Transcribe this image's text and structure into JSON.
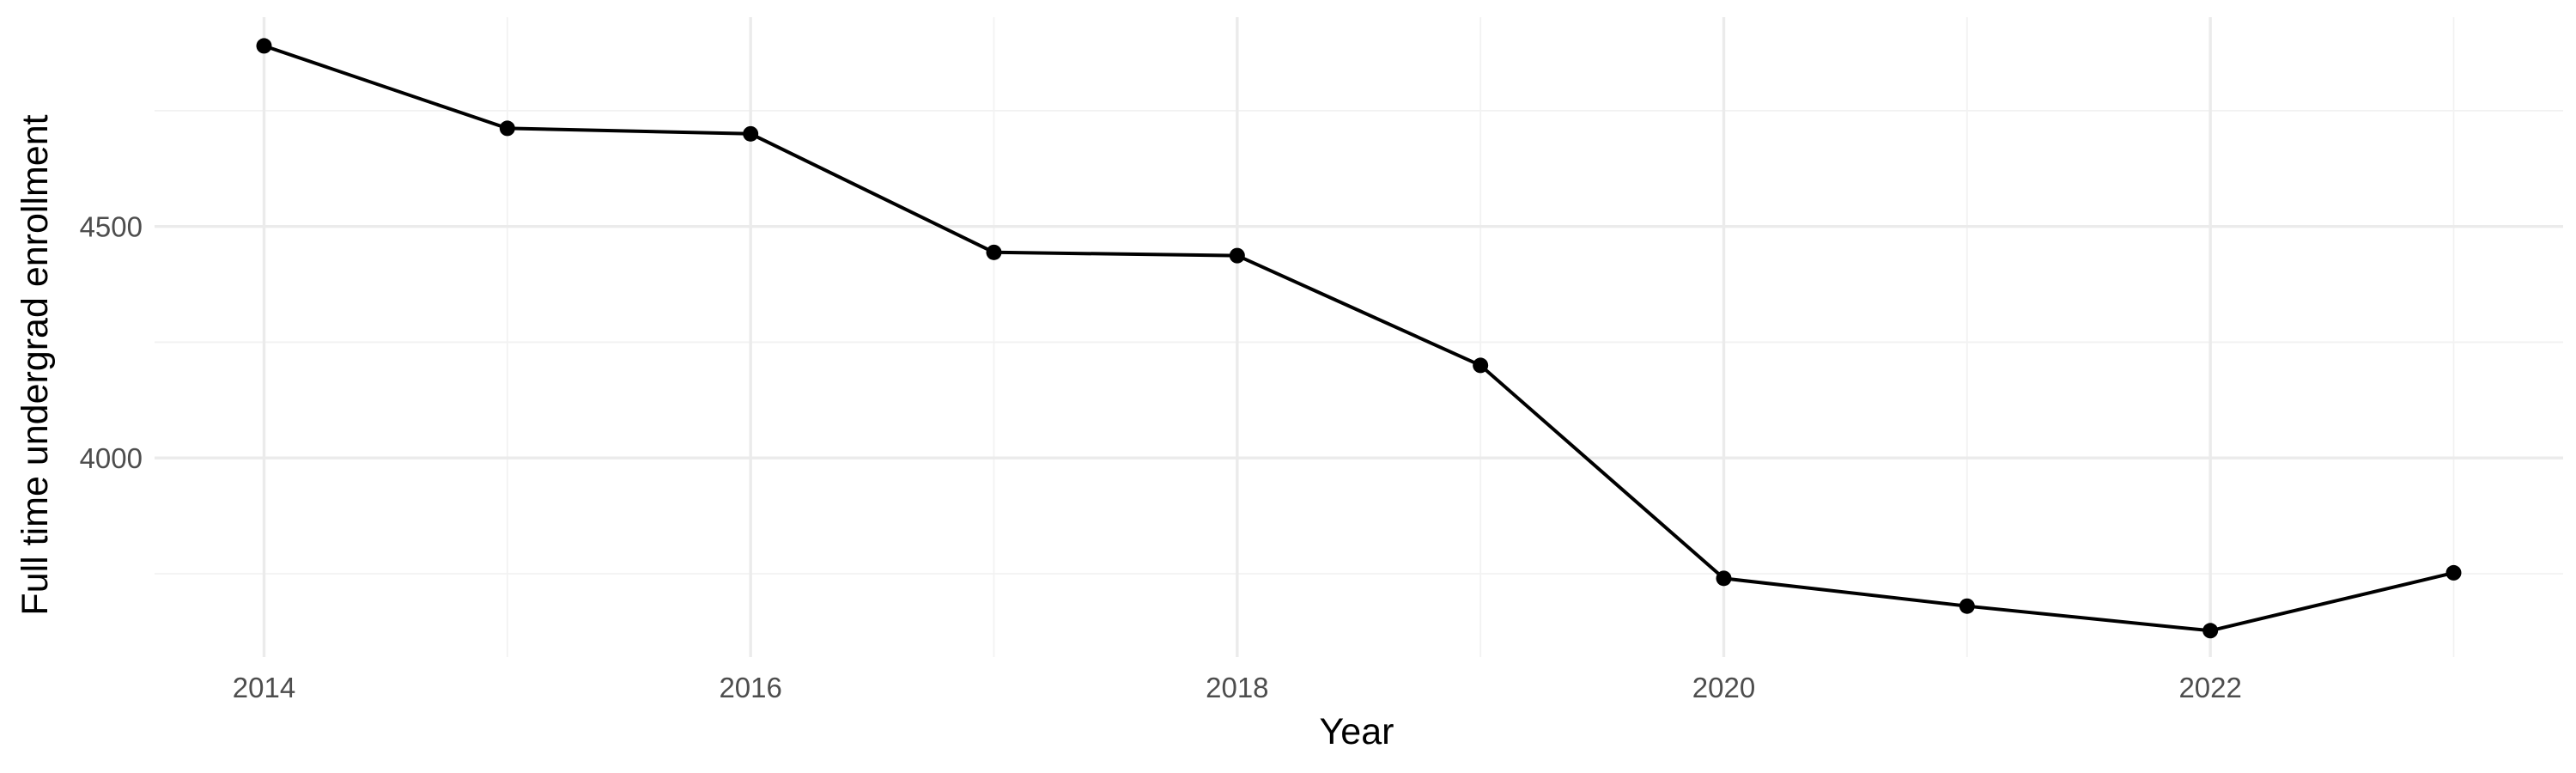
{
  "chart_data": {
    "type": "line",
    "title": "",
    "xlabel": "Year",
    "ylabel": "Full time undergrad enrollment",
    "x": [
      2014,
      2015,
      2016,
      2017,
      2018,
      2019,
      2020,
      2021,
      2022,
      2023
    ],
    "series": [
      {
        "values": [
          4890,
          4712,
          4700,
          4444,
          4437,
          4200,
          3740,
          3680,
          3627,
          3752
        ]
      }
    ],
    "x_ticks": [
      2014,
      2016,
      2018,
      2020,
      2022
    ],
    "x_tick_labels": [
      "2014",
      "2016",
      "2018",
      "2020",
      "2022"
    ],
    "y_ticks": [
      4000,
      4500
    ],
    "y_tick_labels": [
      "4000",
      "4500"
    ],
    "y_minor_ticks": [
      3750,
      4250,
      4750
    ],
    "xlim": [
      2013.55,
      2023.45
    ],
    "ylim": [
      3570,
      4952
    ],
    "grid": true,
    "legend": "none",
    "colors": {
      "line": "#000000",
      "points": "#000000",
      "grid_major": "#ebebeb",
      "grid_minor": "#f2f2f2",
      "tick_text": "#4d4d4d"
    }
  }
}
